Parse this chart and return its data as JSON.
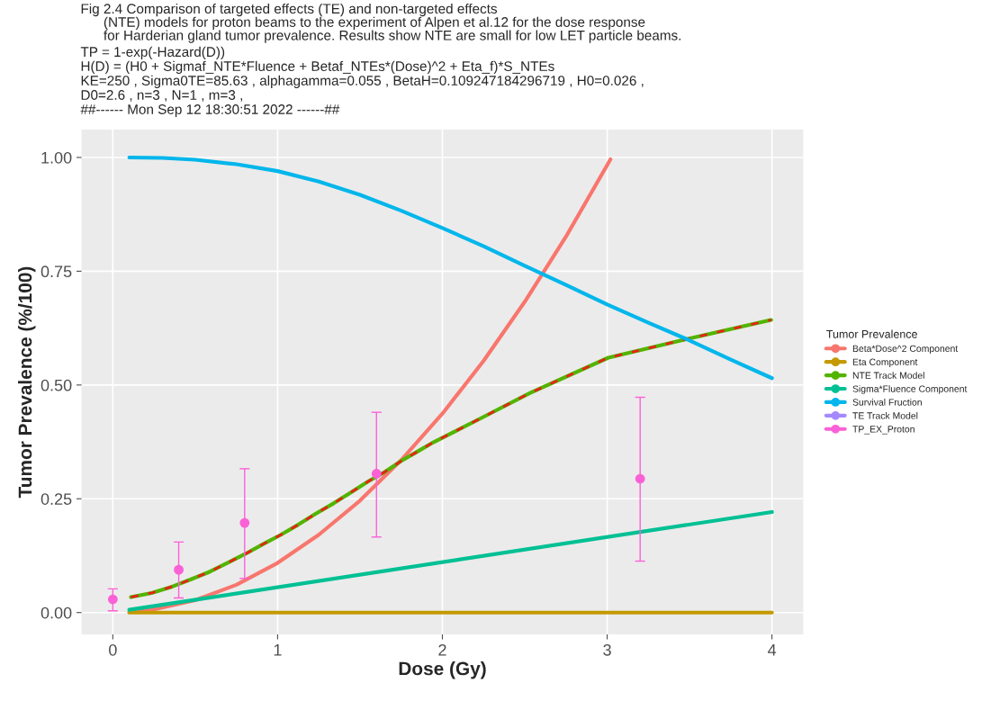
{
  "chart_data": {
    "type": "line",
    "title": "Fig 2.4 Comparison of targeted effects (TE) and non-targeted effects\n      (NTE) models for proton beams to the experiment of Alpen et al.12 for the dose response\n      for Harderian gland tumor prevalence. Results show NTE are small for low LET particle beams.",
    "annotations": [
      "TP = 1-exp(-Hazard(D))",
      "H(D) = (H0 + Sigmaf_NTE*Fluence + Betaf_NTEs*(Dose)^2 + Eta_f)*S_NTEs",
      "KE=250 , Sigma0TE=85.63 , alphagamma=0.055 , BetaH=0.109247184296719 , H0=0.026 ,",
      "D0=2.6 , n=3 , N=1 , m=3 ,",
      "##------ Mon Sep 12 18:30:51 2022 ------##"
    ],
    "xlabel": "Dose (Gy)",
    "ylabel": "Tumor Prevalence (%/100)",
    "legend_title": "Tumor Prevalence",
    "xlim": [
      -0.19,
      4.19
    ],
    "ylim": [
      -0.048,
      1.061
    ],
    "xticks": [
      0,
      1,
      2,
      3,
      4
    ],
    "yticks": [
      {
        "value": 0,
        "label": "0.00"
      },
      {
        "value": 0.25,
        "label": "0.25"
      },
      {
        "value": 0.5,
        "label": "0.50"
      },
      {
        "value": 0.75,
        "label": "0.75"
      },
      {
        "value": 1,
        "label": "1.00"
      }
    ],
    "grid": true,
    "legend": "right",
    "series": [
      {
        "name": "Beta*Dose^2 Component",
        "color": "#f8766d",
        "x": [
          0.1,
          0.25,
          0.5,
          0.75,
          1,
          1.25,
          1.5,
          1.75,
          2,
          2.25,
          2.5,
          2.75,
          3,
          3.02
        ],
        "values": [
          0.001,
          0.007,
          0.027,
          0.061,
          0.109,
          0.171,
          0.246,
          0.335,
          0.437,
          0.553,
          0.683,
          0.826,
          0.983,
          0.996
        ]
      },
      {
        "name": "Eta Component",
        "color": "#c49a00",
        "x": [
          0.1,
          4
        ],
        "values": [
          0,
          0
        ]
      },
      {
        "name": "NTE Track Model",
        "color": "#53b400",
        "x": [
          0.11,
          0.235,
          0.36,
          0.475,
          0.59,
          0.7,
          0.805,
          0.91,
          1.02,
          1.125,
          1.23,
          1.34,
          1.445,
          1.545,
          1.65,
          1.75,
          1.855,
          1.945,
          2.25,
          2.53,
          3.007,
          3.485,
          3.995
        ],
        "values": [
          0.034,
          0.043,
          0.057,
          0.073,
          0.09,
          0.11,
          0.129,
          0.15,
          0.171,
          0.193,
          0.217,
          0.24,
          0.264,
          0.287,
          0.309,
          0.333,
          0.355,
          0.374,
          0.43,
          0.482,
          0.56,
          0.601,
          0.643
        ]
      },
      {
        "color": "#e8221a",
        "line_style": "dashed",
        "x": [
          0.11,
          0.235,
          0.36,
          0.475,
          0.59,
          0.7,
          0.805,
          0.91,
          1.02,
          1.125,
          1.23,
          1.34,
          1.445,
          1.545,
          1.65,
          1.75,
          1.855,
          1.945,
          2.25,
          2.53,
          3.007,
          3.485,
          3.995
        ],
        "values": [
          0.034,
          0.043,
          0.057,
          0.073,
          0.09,
          0.11,
          0.129,
          0.15,
          0.171,
          0.193,
          0.217,
          0.24,
          0.264,
          0.287,
          0.309,
          0.333,
          0.355,
          0.374,
          0.43,
          0.482,
          0.56,
          0.601,
          0.643
        ]
      },
      {
        "name": "Sigma*Fluence Component",
        "color": "#00c094",
        "x": [
          0.1,
          4
        ],
        "values": [
          0.006,
          0.221
        ]
      },
      {
        "name": "Survival Fruction",
        "color": "#00b6eb",
        "x": [
          0.1,
          0.3,
          0.5,
          0.75,
          1,
          1.25,
          1.5,
          1.75,
          2,
          2.25,
          2.5,
          2.75,
          3,
          3.25,
          3.5,
          3.75,
          4
        ],
        "values": [
          1.0,
          0.999,
          0.995,
          0.985,
          0.97,
          0.947,
          0.918,
          0.883,
          0.845,
          0.805,
          0.762,
          0.72,
          0.677,
          0.637,
          0.598,
          0.556,
          0.515
        ]
      },
      {
        "name": "TE Track Model",
        "color": "#a58aff"
      },
      {
        "name": "TP_EX_Proton",
        "type": "scatter",
        "color": "#fb61d7",
        "x": [
          0,
          0.4,
          0.8,
          1.6,
          3.2
        ],
        "values": [
          0.029,
          0.094,
          0.197,
          0.305,
          0.294
        ],
        "errors": [
          [
            0.004,
            0.052
          ],
          [
            0.032,
            0.155
          ],
          [
            0.075,
            0.316
          ],
          [
            0.166,
            0.44
          ],
          [
            0.113,
            0.473
          ]
        ]
      }
    ]
  }
}
